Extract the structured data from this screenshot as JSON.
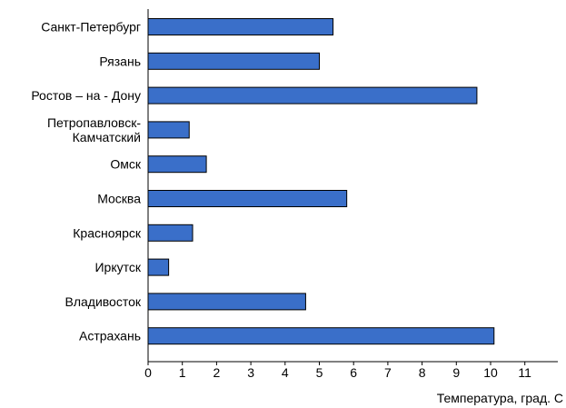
{
  "chart_data": {
    "type": "bar",
    "orientation": "horizontal",
    "categories": [
      "Санкт-Петербург",
      "Рязань",
      "Ростов – на - Дону",
      "Петропавловск-Камчатский",
      "Омск",
      "Москва",
      "Красноярск",
      "Иркутск",
      "Владивосток",
      "Астрахань"
    ],
    "category_label_lines": [
      [
        "Санкт-Петербург"
      ],
      [
        "Рязань"
      ],
      [
        "Ростов – на - Дону"
      ],
      [
        "Петропавловск-",
        "Камчатский"
      ],
      [
        "Омск"
      ],
      [
        "Москва"
      ],
      [
        "Красноярск"
      ],
      [
        "Иркутск"
      ],
      [
        "Владивосток"
      ],
      [
        "Астрахань"
      ]
    ],
    "values": [
      5.4,
      5.0,
      9.6,
      1.2,
      1.7,
      5.8,
      1.3,
      0.6,
      4.6,
      10.1
    ],
    "xlim": [
      0,
      11
    ],
    "x_ticks": [
      "0",
      "1",
      "2",
      "3",
      "4",
      "5",
      "6",
      "7",
      "8",
      "9",
      "10",
      "11"
    ],
    "xlabel": "Температура, град. С",
    "ylabel": "",
    "title": "",
    "grid": false,
    "bar_color": "#3a6fc9"
  }
}
